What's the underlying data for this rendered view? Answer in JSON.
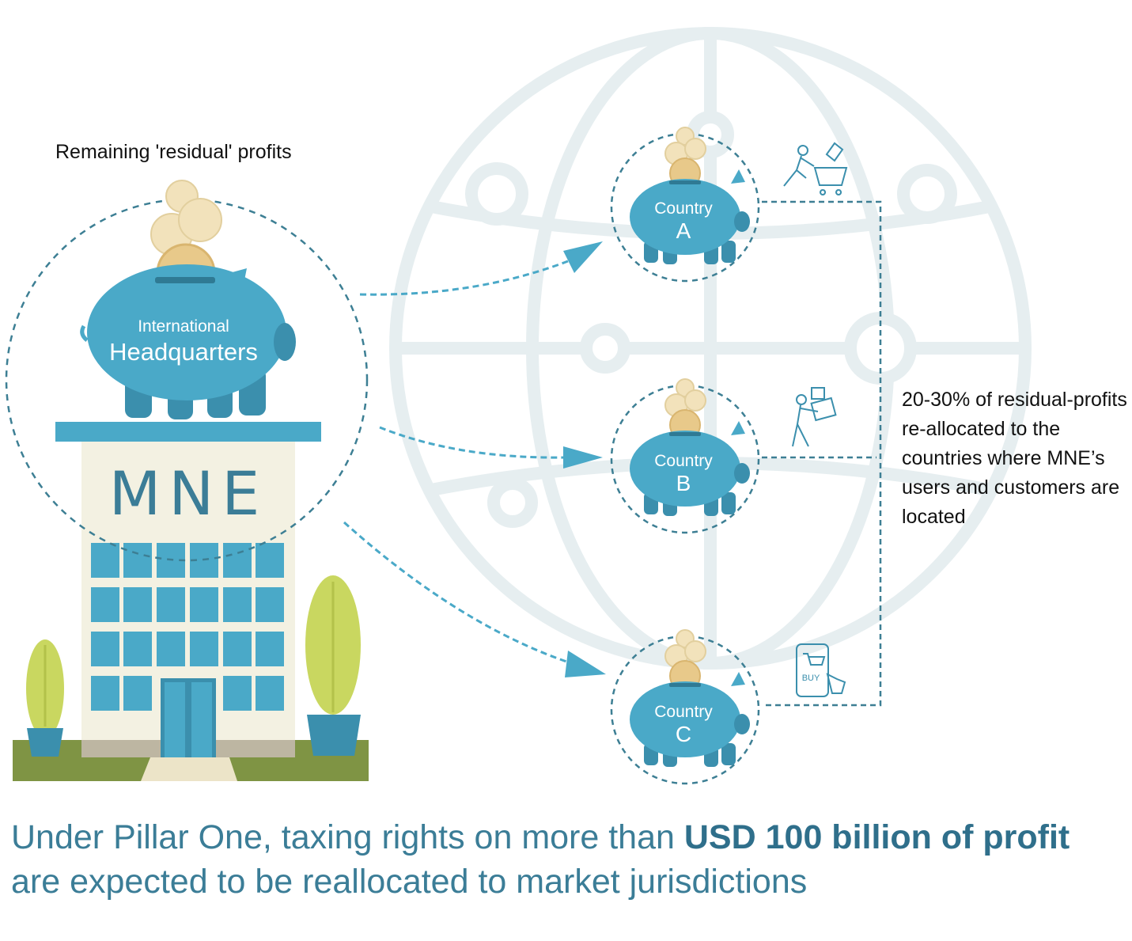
{
  "colors": {
    "piggy": "#4aa9c8",
    "piggy_dark": "#3b8fad",
    "coin": "#e8c98a",
    "coin_light": "#f2e2bb",
    "building": "#f3f1e2",
    "window": "#4aa9c8",
    "grass": "#7f9444",
    "tree": "#c9d760",
    "pot": "#3b8fad",
    "globe": "#e6eef0",
    "dash": "#3d7f94",
    "caption": "#3b7d97"
  },
  "labels": {
    "residual": "Remaining 'residual' profits",
    "hq_small": "International",
    "hq_big": "Headquarters",
    "building": "MNE",
    "reallocation": "20-30% of residual-profits re-allocated to the countries where MNE’s users and customers are located"
  },
  "countries": [
    {
      "word": "Country",
      "letter": "A",
      "icon": "shopping-cart-user-icon"
    },
    {
      "word": "Country",
      "letter": "B",
      "icon": "delivery-person-icon"
    },
    {
      "word": "Country",
      "letter": "C",
      "icon": "mobile-buy-icon"
    }
  ],
  "icons": {
    "buy_text": "BUY"
  },
  "caption": {
    "lead": "Under Pillar One, taxing rights on more than ",
    "bold": "USD 100 billion of profit",
    "rest": " are expected to be reallocated to market jurisdictions"
  }
}
